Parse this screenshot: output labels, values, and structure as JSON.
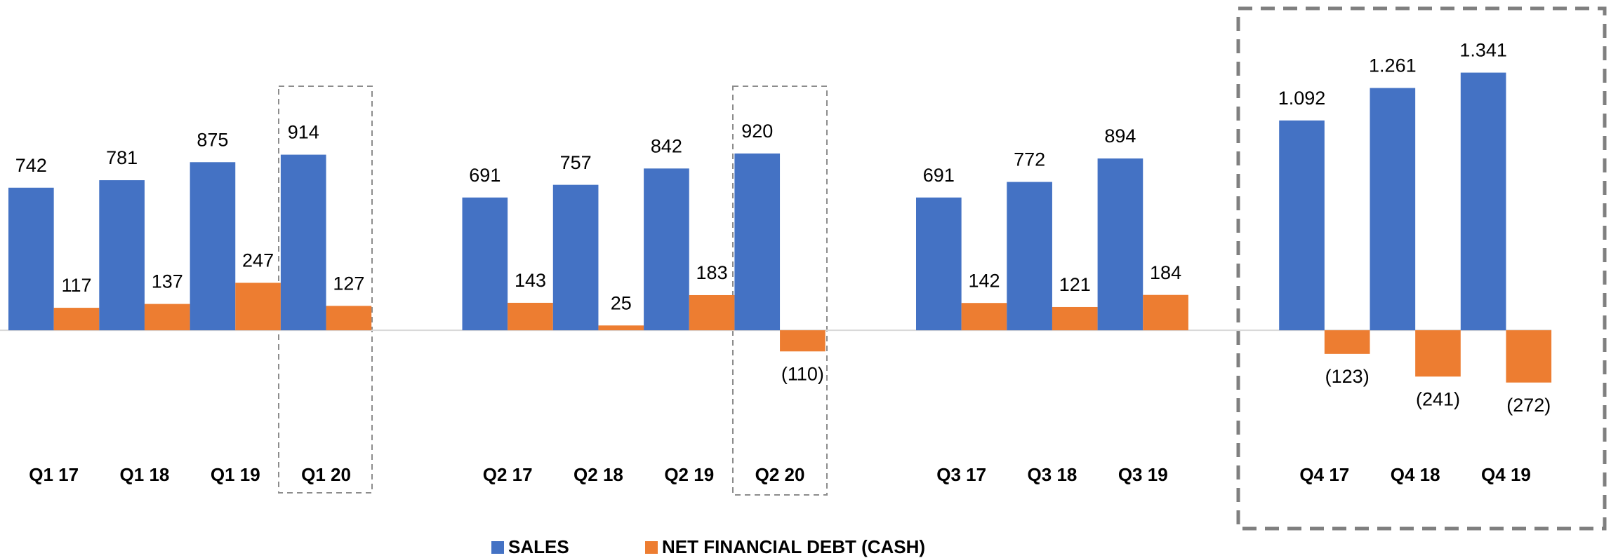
{
  "chart_data": {
    "type": "bar",
    "categories": [
      "Q1 17",
      "Q1 18",
      "Q1 19",
      "Q1 20",
      null,
      "Q2 17",
      "Q2 18",
      "Q2 19",
      "Q2 20",
      null,
      "Q3 17",
      "Q3 18",
      "Q3 19",
      null,
      "Q4 17",
      "Q4 18",
      "Q4 19"
    ],
    "series": [
      {
        "name": "SALES",
        "color": "#4472c4",
        "values": [
          742,
          781,
          875,
          914,
          null,
          691,
          757,
          842,
          920,
          null,
          691,
          772,
          894,
          null,
          1092,
          1261,
          1341
        ],
        "value_labels": [
          "742",
          "781",
          "875",
          "914",
          null,
          "691",
          "757",
          "842",
          "920",
          null,
          "691",
          "772",
          "894",
          null,
          "1.092",
          "1.261",
          "1.341"
        ]
      },
      {
        "name": "NET FINANCIAL DEBT (CASH)",
        "color": "#ed7d31",
        "values": [
          117,
          137,
          247,
          127,
          null,
          143,
          25,
          183,
          -110,
          null,
          142,
          121,
          184,
          null,
          -123,
          -241,
          -272
        ],
        "value_labels": [
          "117",
          "137",
          "247",
          "127",
          null,
          "143",
          "25",
          "183",
          "(110)",
          null,
          "142",
          "121",
          "184",
          null,
          "(123)",
          "(241)",
          "(272)"
        ]
      }
    ],
    "ylim": [
      -700,
      1500
    ]
  }
}
